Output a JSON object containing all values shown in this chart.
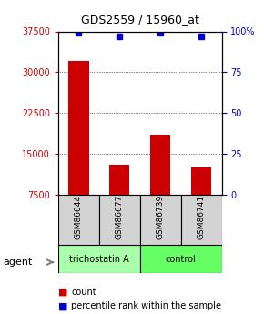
{
  "title": "GDS2559 / 15960_at",
  "samples": [
    "GSM86644",
    "GSM86677",
    "GSM86739",
    "GSM86741"
  ],
  "counts": [
    32000,
    13000,
    18500,
    12500
  ],
  "percentiles": [
    99,
    97,
    99,
    97
  ],
  "ymin": 7500,
  "ymax": 37500,
  "yticks": [
    7500,
    15000,
    22500,
    30000,
    37500
  ],
  "pct_ticks": [
    0,
    25,
    50,
    75,
    100
  ],
  "pct_tick_vals": [
    7500,
    15000,
    22500,
    30000,
    37500
  ],
  "bar_color": "#cc0000",
  "dot_color": "#0000cc",
  "left_tick_color": "#cc0000",
  "right_tick_color": "#0000cc",
  "groups": [
    {
      "label": "trichostatin A",
      "samples": [
        "GSM86644",
        "GSM86677"
      ],
      "color": "#aaffaa"
    },
    {
      "label": "control",
      "samples": [
        "GSM86739",
        "GSM86741"
      ],
      "color": "#66ff66"
    }
  ],
  "agent_label": "agent",
  "legend_count_label": "count",
  "legend_pct_label": "percentile rank within the sample",
  "bar_width": 0.5
}
